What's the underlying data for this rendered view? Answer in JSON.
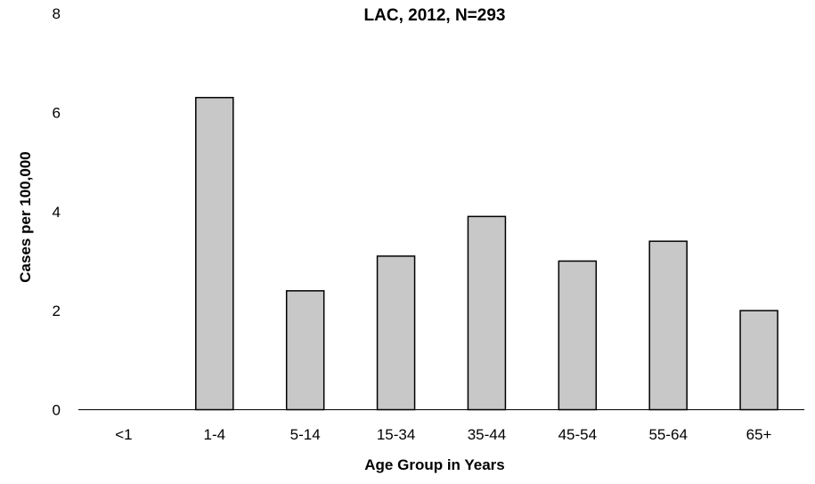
{
  "chart_data": {
    "type": "bar",
    "title": "LAC, 2012, N=293",
    "xlabel": "Age Group in Years",
    "ylabel": "Cases per 100,000",
    "categories": [
      "<1",
      "1-4",
      "5-14",
      "15-34",
      "35-44",
      "45-54",
      "55-64",
      "65+"
    ],
    "values": [
      0,
      6.3,
      2.4,
      3.1,
      3.9,
      3.0,
      3.4,
      2.0
    ],
    "ylim": [
      0,
      8
    ],
    "yticks": [
      0,
      2,
      4,
      6,
      8
    ],
    "grid": false,
    "legend": "none",
    "colors": {
      "bar_fill": "#c8c8c8",
      "bar_stroke": "#000000"
    }
  }
}
